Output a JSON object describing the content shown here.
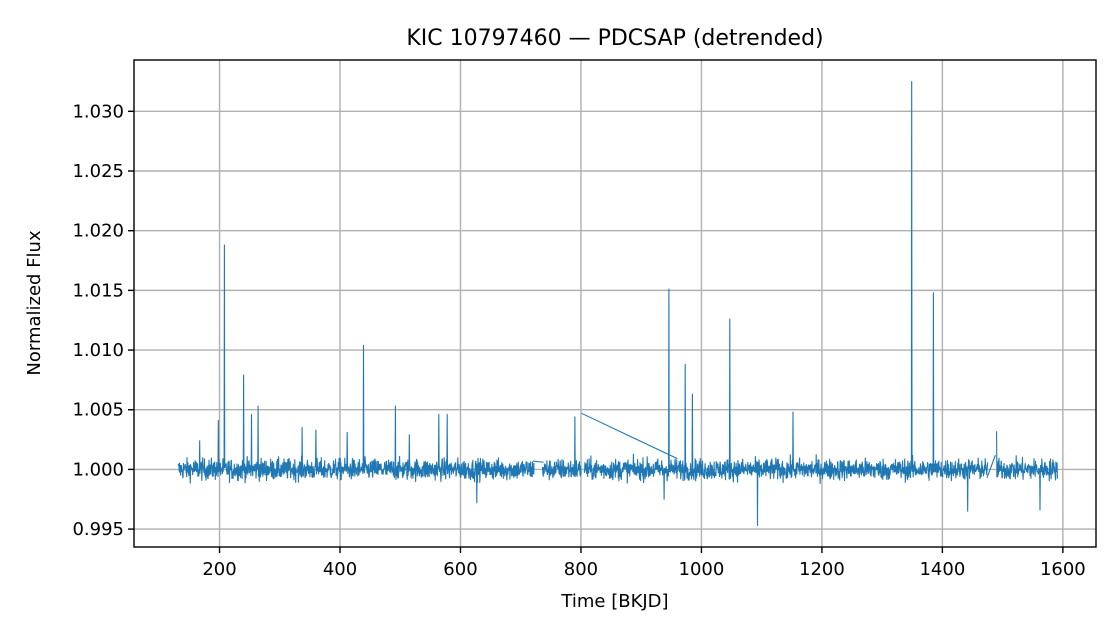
{
  "chart_data": {
    "type": "line",
    "title": "KIC 10797460 — PDCSAP (detrended)",
    "xlabel": "Time [BKJD]",
    "ylabel": "Normalized Flux",
    "xlim": [
      58,
      1655
    ],
    "ylim": [
      0.9935,
      1.0343
    ],
    "xticks": [
      200,
      400,
      600,
      800,
      1000,
      1200,
      1400,
      1600
    ],
    "xtick_labels": [
      "200",
      "400",
      "600",
      "800",
      "1000",
      "1200",
      "1400",
      "1600"
    ],
    "yticks": [
      0.995,
      1.0,
      1.005,
      1.01,
      1.015,
      1.02,
      1.025,
      1.03
    ],
    "ytick_labels": [
      "0.995",
      "1.000",
      "1.005",
      "1.010",
      "1.015",
      "1.020",
      "1.025",
      "1.030"
    ],
    "grid": true,
    "series": [
      {
        "color": "#1f77b4",
        "time_range": [
          131.5,
          1591.0
        ],
        "baseline": 1.0,
        "noise_band": [
          0.9985,
          1.0015
        ],
        "gaps": [
          [
            722,
            736
          ],
          [
            800,
            805
          ],
          [
            1475,
            1490
          ]
        ],
        "spikes": [
          {
            "x": 167,
            "y": 1.0024
          },
          {
            "x": 198,
            "y": 1.0041
          },
          {
            "x": 208,
            "y": 1.0188
          },
          {
            "x": 240,
            "y": 1.0079
          },
          {
            "x": 253,
            "y": 1.0046
          },
          {
            "x": 264,
            "y": 1.0053
          },
          {
            "x": 337,
            "y": 1.0035
          },
          {
            "x": 360,
            "y": 1.0033
          },
          {
            "x": 412,
            "y": 1.0031
          },
          {
            "x": 439,
            "y": 1.0104
          },
          {
            "x": 492,
            "y": 1.0053
          },
          {
            "x": 515,
            "y": 1.0029
          },
          {
            "x": 564,
            "y": 1.0046
          },
          {
            "x": 578,
            "y": 1.0046
          },
          {
            "x": 790,
            "y": 1.0044
          },
          {
            "x": 946,
            "y": 1.0151
          },
          {
            "x": 973,
            "y": 1.0088
          },
          {
            "x": 985,
            "y": 1.0063
          },
          {
            "x": 1047,
            "y": 1.0126
          },
          {
            "x": 1152,
            "y": 1.0048
          },
          {
            "x": 1349,
            "y": 1.0325
          },
          {
            "x": 1385,
            "y": 1.0148
          },
          {
            "x": 1490,
            "y": 1.0032
          }
        ],
        "dips": [
          {
            "x": 627,
            "y": 0.9972
          },
          {
            "x": 938,
            "y": 0.9975
          },
          {
            "x": 1093,
            "y": 0.9953
          },
          {
            "x": 1442,
            "y": 0.9965
          },
          {
            "x": 1562,
            "y": 0.9966
          }
        ],
        "segment_points": [
          {
            "x": 720,
            "y": 1.0007
          },
          {
            "x": 738,
            "y": 1.0006
          },
          {
            "x": 801,
            "y": 1.0047
          },
          {
            "x": 960,
            "y": 1.0009
          },
          {
            "x": 1474,
            "y": 0.9993
          },
          {
            "x": 1488,
            "y": 1.0012
          }
        ]
      }
    ]
  }
}
